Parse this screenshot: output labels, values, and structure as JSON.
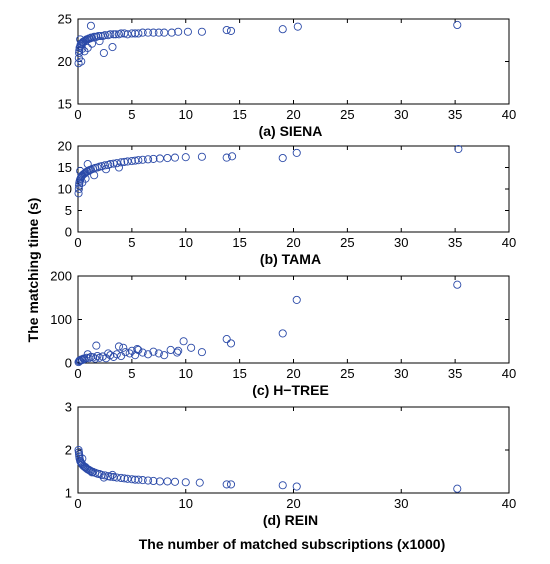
{
  "figure": {
    "ylabel": "The matching time (s)",
    "xlabel": "The number of matched subscriptions (x1000)",
    "marker_color": "#2b4aa8"
  },
  "chart_data": [
    {
      "type": "scatter",
      "caption": "(a) SIENA",
      "xlim": [
        0,
        40
      ],
      "ylim": [
        15,
        25
      ],
      "xticks": [
        0,
        5,
        10,
        15,
        20,
        25,
        30,
        35,
        40
      ],
      "yticks": [
        15,
        20,
        25
      ],
      "grid": false,
      "x": [
        0.05,
        0.08,
        0.1,
        0.12,
        0.15,
        0.2,
        0.25,
        0.3,
        0.35,
        0.4,
        0.45,
        0.5,
        0.6,
        0.7,
        0.8,
        0.9,
        1.0,
        1.1,
        1.2,
        1.3,
        1.5,
        1.7,
        1.9,
        2.1,
        2.3,
        2.5,
        2.8,
        3.0,
        3.3,
        3.5,
        3.8,
        4.0,
        4.3,
        4.6,
        5.0,
        5.3,
        5.6,
        6.0,
        6.5,
        7.0,
        7.5,
        8.0,
        8.7,
        9.3,
        10.2,
        11.5,
        13.8,
        14.2,
        19.0,
        20.4,
        35.2,
        0.3,
        0.6,
        0.9,
        1.2,
        2.0,
        2.4,
        3.2,
        1.3,
        0.2,
        0.4
      ],
      "y": [
        19.8,
        20.4,
        21.0,
        21.3,
        21.6,
        21.8,
        22.0,
        22.1,
        22.0,
        22.2,
        22.3,
        22.3,
        22.4,
        22.5,
        22.6,
        22.6,
        22.7,
        22.7,
        22.8,
        22.8,
        22.9,
        22.9,
        23.0,
        23.0,
        23.0,
        23.1,
        23.1,
        23.2,
        23.2,
        23.2,
        23.2,
        23.3,
        23.3,
        23.2,
        23.3,
        23.3,
        23.3,
        23.4,
        23.4,
        23.4,
        23.4,
        23.4,
        23.4,
        23.5,
        23.5,
        23.5,
        23.7,
        23.6,
        23.8,
        24.1,
        24.3,
        20.0,
        21.2,
        21.6,
        24.2,
        22.4,
        21.0,
        21.7,
        22.1,
        22.6,
        21.5
      ]
    },
    {
      "type": "scatter",
      "caption": "(b) TAMA",
      "xlim": [
        0,
        40
      ],
      "ylim": [
        0,
        20
      ],
      "xticks": [
        0,
        5,
        10,
        15,
        20,
        25,
        30,
        35,
        40
      ],
      "yticks": [
        0,
        5,
        10,
        15,
        20
      ],
      "grid": false,
      "x": [
        0.05,
        0.08,
        0.1,
        0.12,
        0.15,
        0.2,
        0.25,
        0.3,
        0.35,
        0.4,
        0.5,
        0.6,
        0.7,
        0.8,
        0.9,
        1.0,
        1.1,
        1.2,
        1.4,
        1.6,
        1.8,
        2.0,
        2.2,
        2.5,
        2.8,
        3.0,
        3.3,
        3.6,
        4.0,
        4.3,
        4.6,
        5.0,
        5.3,
        5.6,
        6.0,
        6.5,
        7.0,
        7.6,
        8.3,
        9.0,
        10.0,
        11.5,
        13.8,
        14.3,
        19.0,
        20.3,
        35.3,
        0.4,
        0.7,
        1.5,
        2.6,
        3.8,
        0.2,
        0.9
      ],
      "y": [
        9.0,
        10.0,
        10.8,
        11.3,
        11.8,
        12.2,
        12.5,
        12.8,
        13.0,
        13.2,
        13.4,
        13.6,
        13.8,
        14.0,
        14.1,
        14.3,
        14.4,
        14.5,
        14.7,
        14.9,
        15.0,
        15.2,
        15.3,
        15.5,
        15.6,
        15.8,
        15.9,
        16.0,
        16.2,
        16.3,
        16.4,
        16.5,
        16.6,
        16.7,
        16.8,
        16.9,
        17.0,
        17.1,
        17.2,
        17.3,
        17.4,
        17.5,
        17.3,
        17.6,
        17.2,
        18.4,
        19.3,
        11.5,
        12.4,
        13.2,
        14.6,
        15.0,
        14.2,
        15.8
      ]
    },
    {
      "type": "scatter",
      "caption": "(c) H−TREE",
      "xlim": [
        0,
        40
      ],
      "ylim": [
        0,
        200
      ],
      "xticks": [
        0,
        5,
        10,
        15,
        20,
        25,
        30,
        35,
        40
      ],
      "yticks": [
        0,
        100,
        200
      ],
      "grid": false,
      "x": [
        0.05,
        0.1,
        0.15,
        0.2,
        0.3,
        0.4,
        0.5,
        0.6,
        0.8,
        1.0,
        1.2,
        1.4,
        1.6,
        1.8,
        2.0,
        2.3,
        2.6,
        3.0,
        3.3,
        3.6,
        4.0,
        4.4,
        4.8,
        5.0,
        5.3,
        5.6,
        6.0,
        6.5,
        7.0,
        7.5,
        8.0,
        8.6,
        9.2,
        9.8,
        10.5,
        11.5,
        13.8,
        14.2,
        19.0,
        20.3,
        35.2,
        1.7,
        3.8,
        4.2,
        5.5,
        9.3,
        0.9,
        2.8
      ],
      "y": [
        2,
        4,
        6,
        5,
        8,
        7,
        10,
        9,
        12,
        11,
        14,
        13,
        10,
        16,
        12,
        15,
        11,
        18,
        14,
        20,
        16,
        25,
        22,
        28,
        18,
        30,
        24,
        20,
        26,
        22,
        18,
        30,
        24,
        50,
        35,
        25,
        55,
        45,
        68,
        145,
        180,
        40,
        38,
        35,
        32,
        28,
        20,
        22
      ]
    },
    {
      "type": "scatter",
      "caption": "(d) REIN",
      "xlim": [
        0,
        40
      ],
      "ylim": [
        1,
        3
      ],
      "xticks": [
        0,
        10,
        20,
        30,
        40
      ],
      "yticks": [
        1,
        2,
        3
      ],
      "grid": false,
      "x": [
        0.05,
        0.08,
        0.1,
        0.12,
        0.15,
        0.2,
        0.25,
        0.3,
        0.35,
        0.4,
        0.5,
        0.6,
        0.7,
        0.8,
        0.9,
        1.0,
        1.1,
        1.2,
        1.4,
        1.6,
        1.8,
        2.0,
        2.2,
        2.5,
        2.8,
        3.0,
        3.3,
        3.6,
        4.0,
        4.3,
        4.6,
        5.0,
        5.3,
        5.6,
        6.0,
        6.5,
        7.0,
        7.6,
        8.3,
        9.0,
        10.0,
        11.3,
        13.8,
        14.2,
        19.0,
        20.3,
        35.2,
        0.4,
        0.7,
        1.3,
        2.4,
        3.2
      ],
      "y": [
        2.0,
        1.95,
        1.9,
        1.85,
        1.8,
        1.75,
        1.72,
        1.7,
        1.68,
        1.66,
        1.63,
        1.61,
        1.59,
        1.57,
        1.55,
        1.54,
        1.52,
        1.51,
        1.49,
        1.47,
        1.45,
        1.44,
        1.42,
        1.41,
        1.39,
        1.38,
        1.37,
        1.36,
        1.35,
        1.34,
        1.33,
        1.32,
        1.31,
        1.31,
        1.3,
        1.29,
        1.28,
        1.27,
        1.27,
        1.26,
        1.25,
        1.24,
        1.2,
        1.2,
        1.18,
        1.15,
        1.1,
        1.8,
        1.6,
        1.48,
        1.36,
        1.42
      ]
    }
  ]
}
